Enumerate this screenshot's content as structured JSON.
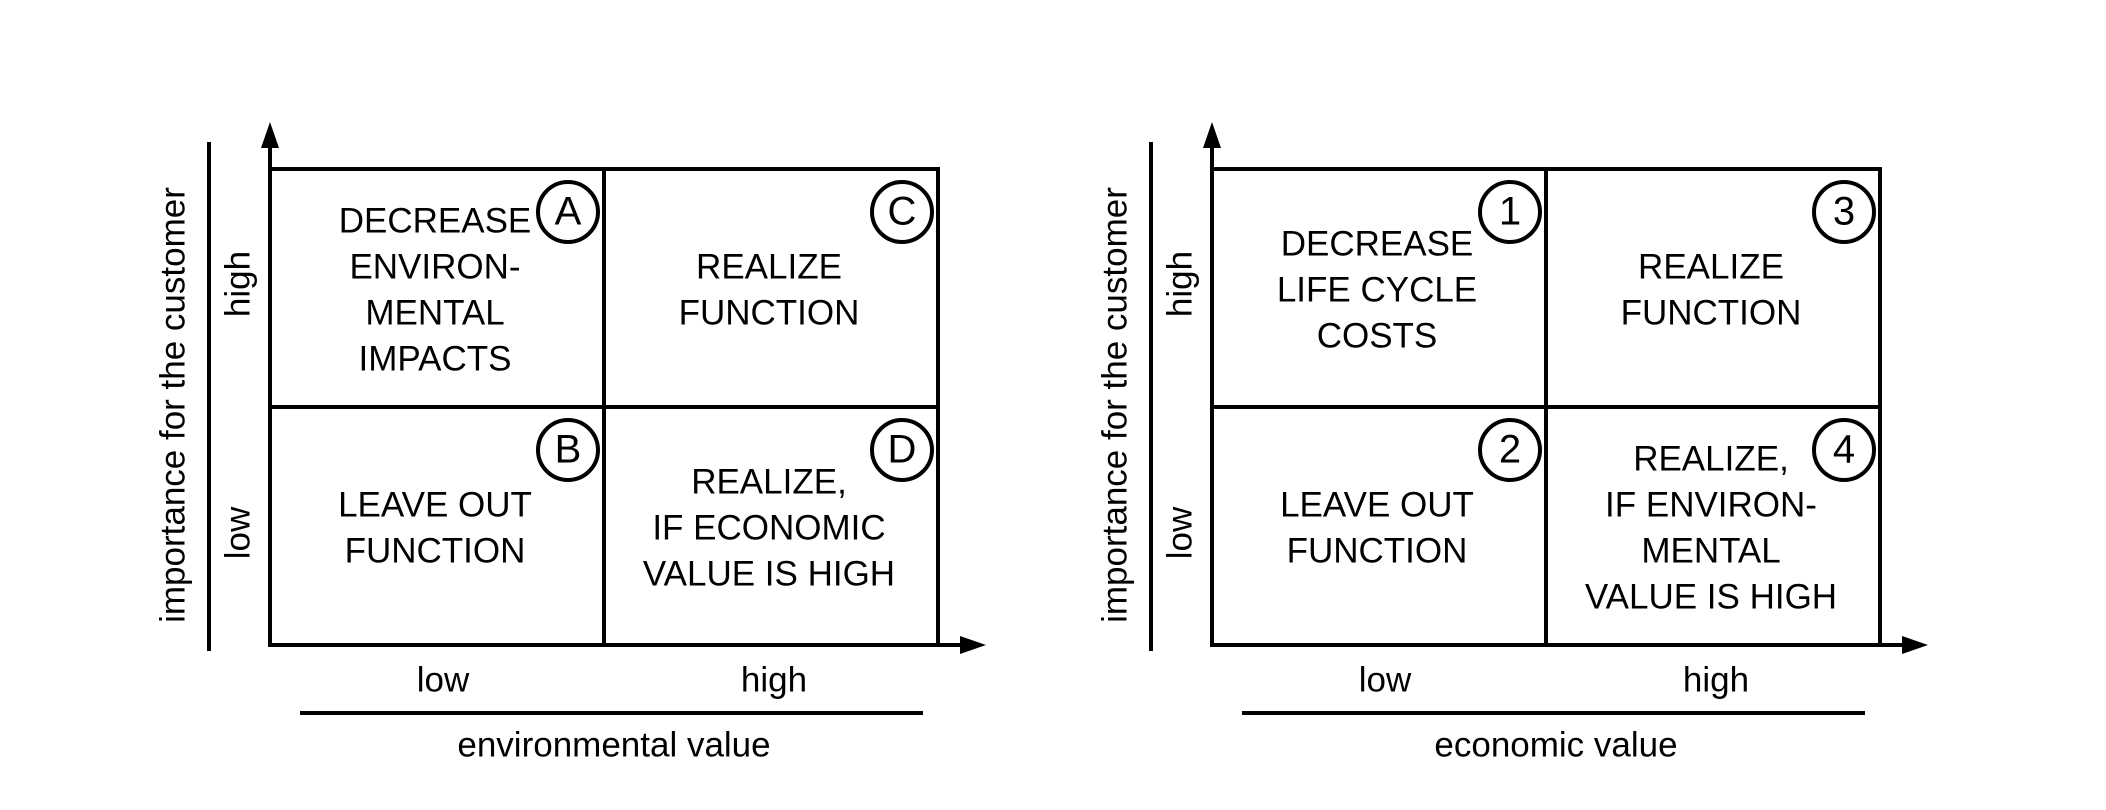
{
  "matrices": [
    {
      "y_axis_label": "importance for the customer",
      "y_high": "high",
      "y_low": "low",
      "x_low": "low",
      "x_high": "high",
      "x_axis_label": "environmental value",
      "quadrants": [
        {
          "marker": "A",
          "lines": [
            "DECREASE",
            "ENVIRON-",
            "MENTAL",
            "IMPACTS"
          ]
        },
        {
          "marker": "C",
          "lines": [
            "REALIZE",
            "FUNCTION"
          ]
        },
        {
          "marker": "B",
          "lines": [
            "LEAVE OUT",
            "FUNCTION"
          ]
        },
        {
          "marker": "D",
          "lines": [
            "REALIZE,",
            "IF ECONOMIC",
            "VALUE IS HIGH"
          ]
        }
      ]
    },
    {
      "y_axis_label": "importance for the customer",
      "y_high": "high",
      "y_low": "low",
      "x_low": "low",
      "x_high": "high",
      "x_axis_label": "economic value",
      "quadrants": [
        {
          "marker": "1",
          "lines": [
            "DECREASE",
            "LIFE CYCLE",
            "COSTS"
          ]
        },
        {
          "marker": "3",
          "lines": [
            "REALIZE",
            "FUNCTION"
          ]
        },
        {
          "marker": "2",
          "lines": [
            "LEAVE OUT",
            "FUNCTION"
          ]
        },
        {
          "marker": "4",
          "lines": [
            "REALIZE,",
            "IF ENVIRON-",
            "MENTAL",
            "VALUE IS HIGH"
          ]
        }
      ]
    }
  ]
}
